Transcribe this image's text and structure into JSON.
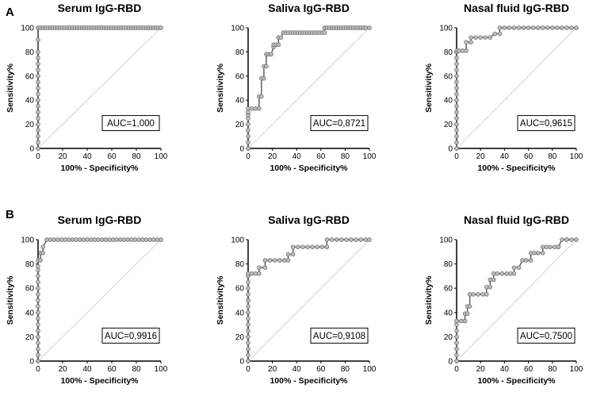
{
  "panels": [
    {
      "letter": "A"
    },
    {
      "letter": "B"
    }
  ],
  "chart_data": [
    {
      "type": "line",
      "panel": "A",
      "title": "Serum IgG-RBD",
      "xlabel": "100% - Specificity%",
      "ylabel": "Sensitivity%",
      "xlim": [
        0,
        100
      ],
      "ylim": [
        0,
        100
      ],
      "xticks": [
        0,
        20,
        40,
        60,
        80,
        100
      ],
      "yticks": [
        0,
        20,
        40,
        60,
        80,
        100
      ],
      "auc_label": "AUC=1,000",
      "x": [
        0,
        0,
        0,
        0,
        0,
        0,
        0,
        0,
        0,
        0,
        0,
        0,
        0,
        0,
        0,
        0,
        0,
        0,
        0,
        2,
        4,
        6,
        8,
        10,
        12,
        14,
        16,
        18,
        20,
        22,
        24,
        26,
        28,
        30,
        32,
        34,
        36,
        38,
        40,
        42,
        44,
        46,
        48,
        50,
        52,
        54,
        56,
        58,
        60,
        62,
        64,
        66,
        68,
        70,
        72,
        74,
        76,
        78,
        80,
        82,
        84,
        86,
        88,
        90,
        92,
        94,
        96,
        98,
        100
      ],
      "y": [
        0,
        5,
        10,
        15,
        20,
        25,
        30,
        35,
        40,
        45,
        50,
        55,
        60,
        65,
        70,
        75,
        80,
        90,
        100,
        100,
        100,
        100,
        100,
        100,
        100,
        100,
        100,
        100,
        100,
        100,
        100,
        100,
        100,
        100,
        100,
        100,
        100,
        100,
        100,
        100,
        100,
        100,
        100,
        100,
        100,
        100,
        100,
        100,
        100,
        100,
        100,
        100,
        100,
        100,
        100,
        100,
        100,
        100,
        100,
        100,
        100,
        100,
        100,
        100,
        100,
        100,
        100,
        100,
        100
      ]
    },
    {
      "type": "line",
      "panel": "A",
      "title": "Saliva IgG-RBD",
      "xlabel": "100% - Specificity%",
      "ylabel": "Sensitivity%",
      "xlim": [
        0,
        100
      ],
      "ylim": [
        0,
        100
      ],
      "xticks": [
        0,
        20,
        40,
        60,
        80,
        100
      ],
      "yticks": [
        0,
        20,
        40,
        60,
        80,
        100
      ],
      "auc_label": "AUC=0,8721",
      "x": [
        0,
        0,
        0,
        0,
        0,
        0,
        0,
        0,
        0,
        3,
        6,
        9,
        9,
        11,
        11,
        13,
        13,
        15,
        15,
        17,
        19,
        21,
        21,
        23,
        25,
        25,
        27,
        29,
        31,
        33,
        35,
        37,
        39,
        41,
        43,
        45,
        47,
        49,
        51,
        53,
        55,
        57,
        59,
        61,
        63,
        63,
        65,
        67,
        69,
        71,
        73,
        75,
        77,
        79,
        81,
        83,
        85,
        87,
        89,
        91,
        93,
        95,
        97,
        100
      ],
      "y": [
        0,
        5,
        10,
        15,
        20,
        25,
        28,
        30,
        33,
        33,
        33,
        33,
        43,
        43,
        58,
        58,
        68,
        68,
        78,
        78,
        78,
        84,
        86,
        86,
        86,
        92,
        92,
        96,
        96,
        96,
        96,
        96,
        96,
        96,
        96,
        96,
        96,
        96,
        96,
        96,
        96,
        96,
        96,
        96,
        96,
        100,
        100,
        100,
        100,
        100,
        100,
        100,
        100,
        100,
        100,
        100,
        100,
        100,
        100,
        100,
        100,
        100,
        100,
        100
      ]
    },
    {
      "type": "line",
      "panel": "A",
      "title": "Nasal fluid IgG-RBD",
      "xlabel": "100% - Specificity%",
      "ylabel": "Sensitivity%",
      "xlim": [
        0,
        100
      ],
      "ylim": [
        0,
        100
      ],
      "xticks": [
        0,
        20,
        40,
        60,
        80,
        100
      ],
      "yticks": [
        0,
        20,
        40,
        60,
        80,
        100
      ],
      "auc_label": "AUC=0,9615",
      "x": [
        0,
        0,
        0,
        0,
        0,
        0,
        0,
        0,
        0,
        0,
        0,
        0,
        0,
        0,
        0,
        0,
        0,
        0,
        2,
        5,
        8,
        8,
        12,
        12,
        16,
        20,
        24,
        28,
        32,
        36,
        36,
        40,
        44,
        48,
        52,
        56,
        60,
        64,
        68,
        72,
        76,
        80,
        84,
        88,
        92,
        96,
        100
      ],
      "y": [
        0,
        5,
        10,
        15,
        20,
        25,
        30,
        35,
        40,
        45,
        50,
        55,
        60,
        65,
        70,
        75,
        80,
        81,
        81,
        81,
        81,
        88,
        88,
        92,
        92,
        92,
        92,
        92,
        95,
        95,
        100,
        100,
        100,
        100,
        100,
        100,
        100,
        100,
        100,
        100,
        100,
        100,
        100,
        100,
        100,
        100,
        100
      ]
    },
    {
      "type": "line",
      "panel": "B",
      "title": "Serum IgG-RBD",
      "xlabel": "100% - Specificity%",
      "ylabel": "Sensitivity%",
      "xlim": [
        0,
        100
      ],
      "ylim": [
        0,
        100
      ],
      "xticks": [
        0,
        20,
        40,
        60,
        80,
        100
      ],
      "yticks": [
        0,
        20,
        40,
        60,
        80,
        100
      ],
      "auc_label": "AUC=0,9916",
      "x": [
        0,
        0,
        0,
        0,
        0,
        0,
        0,
        0,
        0,
        0,
        0,
        0,
        0,
        0,
        0,
        0,
        0,
        0,
        2,
        2,
        4,
        4,
        7,
        10,
        13,
        16,
        19,
        22,
        25,
        28,
        31,
        34,
        37,
        40,
        43,
        46,
        49,
        52,
        55,
        58,
        61,
        64,
        67,
        70,
        73,
        76,
        79,
        82,
        85,
        88,
        91,
        94,
        97,
        100
      ],
      "y": [
        0,
        5,
        10,
        15,
        20,
        25,
        30,
        35,
        40,
        45,
        50,
        55,
        60,
        65,
        70,
        75,
        78,
        83,
        83,
        89,
        89,
        94,
        100,
        100,
        100,
        100,
        100,
        100,
        100,
        100,
        100,
        100,
        100,
        100,
        100,
        100,
        100,
        100,
        100,
        100,
        100,
        100,
        100,
        100,
        100,
        100,
        100,
        100,
        100,
        100,
        100,
        100,
        100,
        100
      ]
    },
    {
      "type": "line",
      "panel": "B",
      "title": "Saliva IgG-RBD",
      "xlabel": "100% - Specificity%",
      "ylabel": "Sensitivity%",
      "xlim": [
        0,
        100
      ],
      "ylim": [
        0,
        100
      ],
      "xticks": [
        0,
        20,
        40,
        60,
        80,
        100
      ],
      "yticks": [
        0,
        20,
        40,
        60,
        80,
        100
      ],
      "auc_label": "AUC=0,9108",
      "x": [
        0,
        0,
        0,
        0,
        0,
        0,
        0,
        0,
        0,
        0,
        0,
        0,
        0,
        0,
        0,
        0,
        0,
        3,
        6,
        9,
        9,
        14,
        14,
        18,
        22,
        26,
        30,
        33,
        33,
        37,
        37,
        41,
        45,
        49,
        53,
        57,
        61,
        65,
        65,
        69,
        73,
        77,
        81,
        85,
        89,
        93,
        97,
        100
      ],
      "y": [
        0,
        5,
        10,
        15,
        20,
        25,
        30,
        35,
        40,
        45,
        50,
        55,
        60,
        65,
        70,
        72,
        72,
        72,
        72,
        72,
        77,
        77,
        83,
        83,
        83,
        83,
        83,
        83,
        88,
        88,
        94,
        94,
        94,
        94,
        94,
        94,
        94,
        94,
        100,
        100,
        100,
        100,
        100,
        100,
        100,
        100,
        100,
        100
      ]
    },
    {
      "type": "line",
      "panel": "B",
      "title": "Nasal fluid IgG-RBD",
      "xlabel": "100% - Specificity%",
      "ylabel": "Sensitivity%",
      "xlim": [
        0,
        100
      ],
      "ylim": [
        0,
        100
      ],
      "xticks": [
        0,
        20,
        40,
        60,
        80,
        100
      ],
      "yticks": [
        0,
        20,
        40,
        60,
        80,
        100
      ],
      "auc_label": "AUC=0,7500",
      "x": [
        0,
        0,
        0,
        0,
        0,
        0,
        0,
        0,
        0,
        4,
        7,
        7,
        9,
        9,
        11,
        11,
        14,
        18,
        22,
        25,
        25,
        28,
        28,
        31,
        31,
        34,
        38,
        42,
        45,
        48,
        48,
        52,
        55,
        58,
        62,
        62,
        65,
        68,
        72,
        72,
        75,
        78,
        82,
        85,
        85,
        88,
        92,
        92,
        96,
        100
      ],
      "y": [
        0,
        5,
        10,
        15,
        20,
        25,
        30,
        33,
        33,
        33,
        33,
        39,
        39,
        45,
        45,
        55,
        55,
        55,
        55,
        55,
        61,
        61,
        67,
        67,
        72,
        72,
        72,
        72,
        72,
        72,
        77,
        77,
        83,
        83,
        83,
        89,
        89,
        89,
        89,
        94,
        94,
        94,
        94,
        94,
        94,
        100,
        100,
        100,
        100,
        100
      ]
    }
  ]
}
